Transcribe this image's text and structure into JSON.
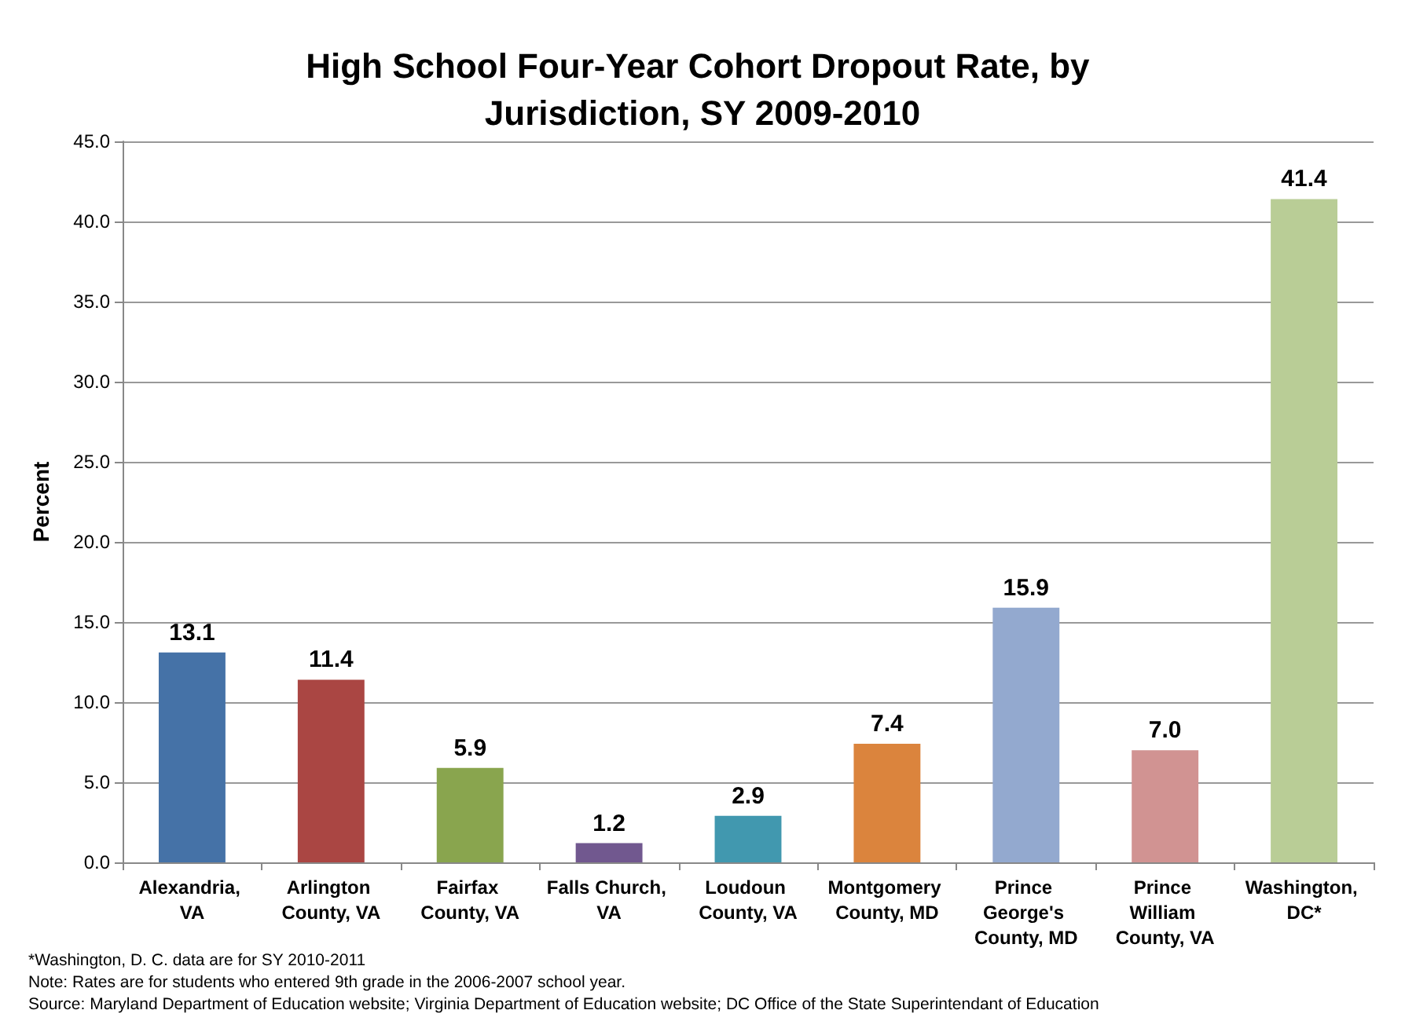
{
  "chart_data": {
    "type": "bar",
    "title": "High School Four-Year Cohort Dropout Rate, by Jurisdiction, SY 2009-2010",
    "ylabel": "Percent",
    "categories": [
      "Alexandria, VA",
      "Arlington County, VA",
      "Fairfax County, VA",
      "Falls Church, VA",
      "Loudoun County, VA",
      "Montgomery County, MD",
      "Prince George's County, MD",
      "Prince William County, VA",
      "Washington, DC*"
    ],
    "values": [
      13.1,
      11.4,
      5.9,
      1.2,
      2.9,
      7.4,
      15.9,
      7.0,
      41.4
    ],
    "value_labels": [
      "13.1",
      "11.4",
      "5.9",
      "1.2",
      "2.9",
      "7.4",
      "15.9",
      "7.0",
      "41.4"
    ],
    "colors": [
      "#4572a7",
      "#aa4643",
      "#89a54e",
      "#71588f",
      "#4198af",
      "#db843d",
      "#93a9cf",
      "#d19392",
      "#b9cd96"
    ],
    "ylim": [
      0,
      45
    ],
    "yticks": [
      {
        "value": 0,
        "label": "0.0"
      },
      {
        "value": 5,
        "label": "5.0"
      },
      {
        "value": 10,
        "label": "10.0"
      },
      {
        "value": 15,
        "label": "15.0"
      },
      {
        "value": 20,
        "label": "20.0"
      },
      {
        "value": 25,
        "label": "25.0"
      },
      {
        "value": 30,
        "label": "30.0"
      },
      {
        "value": 35,
        "label": "35.0"
      },
      {
        "value": 40,
        "label": "40.0"
      },
      {
        "value": 45,
        "label": "45.0"
      }
    ],
    "grid": "y",
    "annotations": [
      "*Washington, D. C. data are for SY 2010-2011",
      "Note: Rates are for students who entered 9th grade in the 2006-2007 school year.",
      "Source: Maryland Department of Education website; Virginia Department of Education website; DC Office of the State Superintendant of Education"
    ]
  }
}
